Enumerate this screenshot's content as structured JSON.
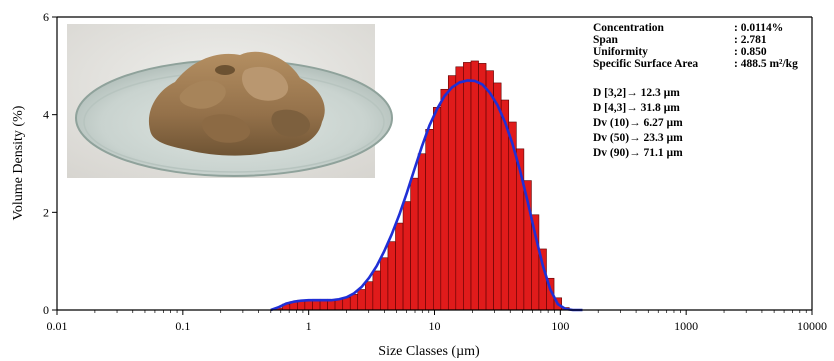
{
  "chart_data": {
    "type": "bar",
    "xlabel": "Size Classes (µm)",
    "ylabel": "Volume Density (%)",
    "x_scale": "log",
    "xlim": [
      0.01,
      10000
    ],
    "ylim": [
      0,
      6
    ],
    "x_ticks": [
      "0.01",
      "0.1",
      "1",
      "10",
      "100",
      "1000",
      "10000"
    ],
    "y_ticks": [
      "0",
      "2",
      "4",
      "6"
    ],
    "bar_color": "#e01b1b",
    "curve_color": "#1f2fd6",
    "photo_description_icon": "sample-powder-photo",
    "stats": [
      {
        "label": "Concentration",
        "value": ": 0.0114%"
      },
      {
        "label": "Span",
        "value": ": 2.781"
      },
      {
        "label": "Uniformity",
        "value": ": 0.850"
      },
      {
        "label": "Specific Surface Area",
        "value": ": 488.5 m²/kg"
      }
    ],
    "diameters": [
      "D [3,2]→ 12.3 µm",
      "D [4,3]→ 31.8 µm",
      "Dv (10)→ 6.27 µm",
      "Dv (50)→ 23.3 µm",
      "Dv (90)→ 71.1 µm"
    ],
    "series": [
      {
        "kind": "bars",
        "x": [
          0.58,
          0.66,
          0.76,
          0.87,
          1.0,
          1.15,
          1.32,
          1.51,
          1.74,
          2.0,
          2.29,
          2.63,
          3.02,
          3.47,
          3.98,
          4.57,
          5.25,
          6.03,
          6.92,
          7.94,
          9.12,
          10.5,
          12.0,
          13.8,
          15.8,
          18.2,
          20.9,
          24.0,
          27.5,
          31.6,
          36.3,
          41.7,
          47.9,
          55.0,
          63.1,
          72.4,
          83.2,
          95.5,
          110,
          126,
          145
        ],
        "values": [
          0.04,
          0.12,
          0.17,
          0.2,
          0.21,
          0.22,
          0.22,
          0.22,
          0.23,
          0.26,
          0.32,
          0.42,
          0.58,
          0.8,
          1.07,
          1.4,
          1.78,
          2.22,
          2.7,
          3.2,
          3.7,
          4.15,
          4.52,
          4.8,
          4.98,
          5.07,
          5.1,
          5.05,
          4.9,
          4.65,
          4.3,
          3.85,
          3.3,
          2.65,
          1.95,
          1.25,
          0.65,
          0.25,
          0.05,
          0.0,
          0.0
        ]
      },
      {
        "kind": "curve",
        "x": [
          0.5,
          0.58,
          0.66,
          0.76,
          0.87,
          1.0,
          1.15,
          1.32,
          1.51,
          1.74,
          2.0,
          2.29,
          2.63,
          3.02,
          3.47,
          3.98,
          4.57,
          5.25,
          6.03,
          6.92,
          7.94,
          9.12,
          10.5,
          12.0,
          13.8,
          15.8,
          18.2,
          20.9,
          24.0,
          27.5,
          31.6,
          36.3,
          41.7,
          47.9,
          55.0,
          63.1,
          72.4,
          83.2,
          95.5,
          110,
          126,
          150
        ],
        "values": [
          0.0,
          0.06,
          0.13,
          0.17,
          0.19,
          0.2,
          0.2,
          0.2,
          0.2,
          0.22,
          0.26,
          0.34,
          0.47,
          0.66,
          0.9,
          1.2,
          1.55,
          1.95,
          2.4,
          2.88,
          3.35,
          3.78,
          4.12,
          4.38,
          4.56,
          4.66,
          4.7,
          4.69,
          4.62,
          4.45,
          4.2,
          3.85,
          3.4,
          2.85,
          2.22,
          1.55,
          0.92,
          0.42,
          0.12,
          0.02,
          0.0,
          0.0
        ]
      }
    ]
  }
}
